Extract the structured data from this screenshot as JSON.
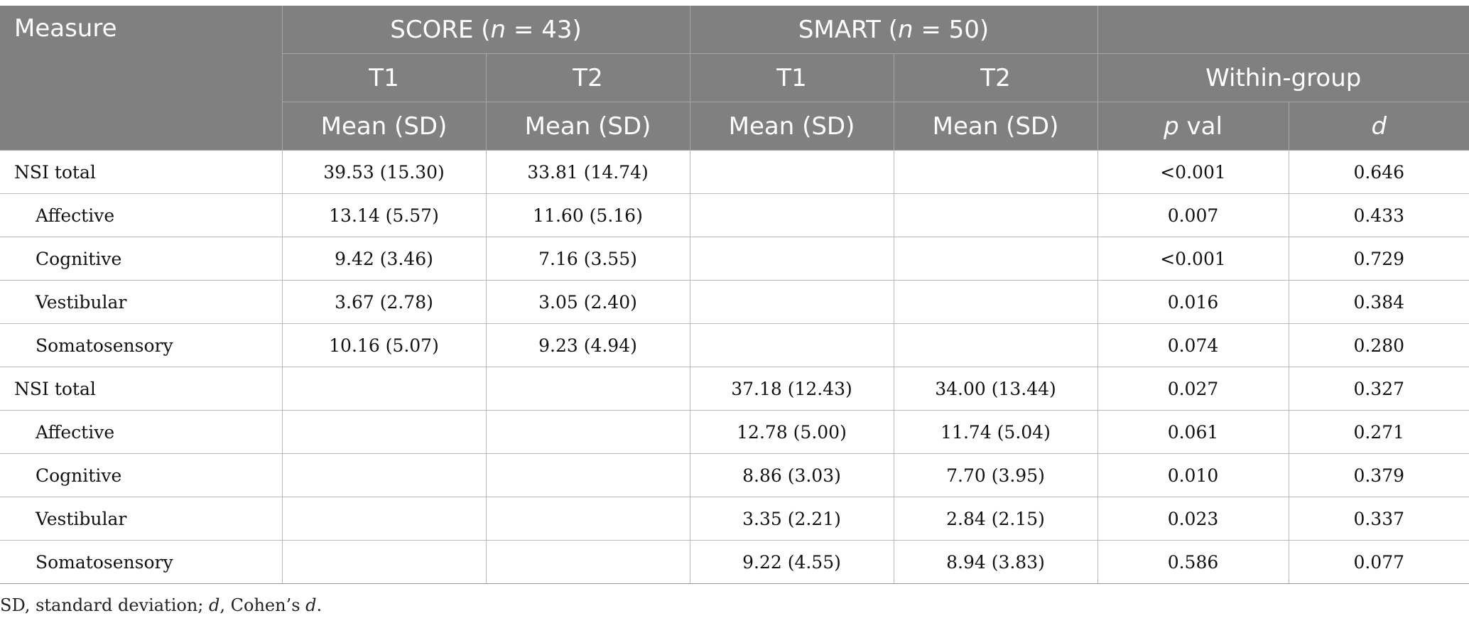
{
  "header": {
    "measure": "Measure",
    "score_label": "SCORE (",
    "score_n": "n",
    "score_suffix": " = 43)",
    "smart_label": "SMART (",
    "smart_n": "n",
    "smart_suffix": " = 50)",
    "t1": "T1",
    "t2": "T2",
    "within_group": "Within-group",
    "mean_sd": "Mean (SD)",
    "p_italic": "p",
    "p_suffix": " val",
    "d": "d"
  },
  "rows": [
    {
      "measure": "NSI total",
      "indent": false,
      "score_t1": "39.53 (15.30)",
      "score_t2": "33.81 (14.74)",
      "smart_t1": "",
      "smart_t2": "",
      "p": "<0.001",
      "d": "0.646"
    },
    {
      "measure": "Affective",
      "indent": true,
      "score_t1": "13.14 (5.57)",
      "score_t2": "11.60 (5.16)",
      "smart_t1": "",
      "smart_t2": "",
      "p": "0.007",
      "d": "0.433"
    },
    {
      "measure": "Cognitive",
      "indent": true,
      "score_t1": "9.42 (3.46)",
      "score_t2": "7.16 (3.55)",
      "smart_t1": "",
      "smart_t2": "",
      "p": "<0.001",
      "d": "0.729"
    },
    {
      "measure": "Vestibular",
      "indent": true,
      "score_t1": "3.67 (2.78)",
      "score_t2": "3.05 (2.40)",
      "smart_t1": "",
      "smart_t2": "",
      "p": "0.016",
      "d": "0.384"
    },
    {
      "measure": "Somatosensory",
      "indent": true,
      "score_t1": "10.16 (5.07)",
      "score_t2": "9.23 (4.94)",
      "smart_t1": "",
      "smart_t2": "",
      "p": "0.074",
      "d": "0.280"
    },
    {
      "measure": "NSI total",
      "indent": false,
      "score_t1": "",
      "score_t2": "",
      "smart_t1": "37.18 (12.43)",
      "smart_t2": "34.00 (13.44)",
      "p": "0.027",
      "d": "0.327"
    },
    {
      "measure": "Affective",
      "indent": true,
      "score_t1": "",
      "score_t2": "",
      "smart_t1": "12.78 (5.00)",
      "smart_t2": "11.74 (5.04)",
      "p": "0.061",
      "d": "0.271"
    },
    {
      "measure": "Cognitive",
      "indent": true,
      "score_t1": "",
      "score_t2": "",
      "smart_t1": "8.86 (3.03)",
      "smart_t2": "7.70 (3.95)",
      "p": "0.010",
      "d": "0.379"
    },
    {
      "measure": "Vestibular",
      "indent": true,
      "score_t1": "",
      "score_t2": "",
      "smart_t1": "3.35 (2.21)",
      "smart_t2": "2.84 (2.15)",
      "p": "0.023",
      "d": "0.337"
    },
    {
      "measure": "Somatosensory",
      "indent": true,
      "score_t1": "",
      "score_t2": "",
      "smart_t1": "9.22 (4.55)",
      "smart_t2": "8.94 (3.83)",
      "p": "0.586",
      "d": "0.077"
    }
  ],
  "footnote": {
    "sd_text": "SD, standard deviation; ",
    "d_italic": "d",
    "cohen_text": ", Cohen’s ",
    "d_italic_2": "d",
    "period": "."
  }
}
